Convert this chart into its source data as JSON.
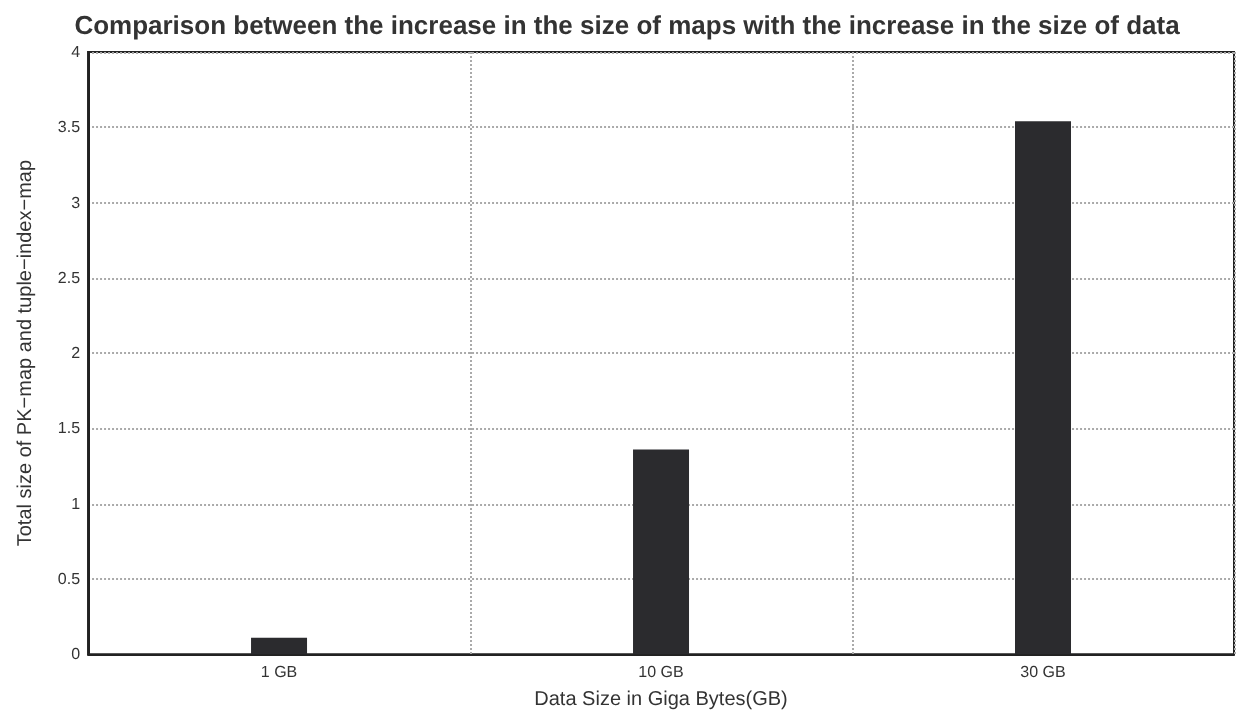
{
  "chart_data": {
    "type": "bar",
    "title": "Comparison between the increase in the size of maps with the increase in the size of data",
    "xlabel": "Data Size in Giga Bytes(GB)",
    "ylabel": "Total size of PK−map and tuple−index−map",
    "categories": [
      "1 GB",
      "10 GB",
      "30 GB"
    ],
    "values": [
      0.11,
      1.36,
      3.54
    ],
    "color": "#2b2b2e",
    "ylim": [
      0,
      4
    ],
    "yticks": [
      0,
      0.5,
      1,
      1.5,
      2,
      2.5,
      3,
      3.5,
      4
    ],
    "grid": true
  }
}
